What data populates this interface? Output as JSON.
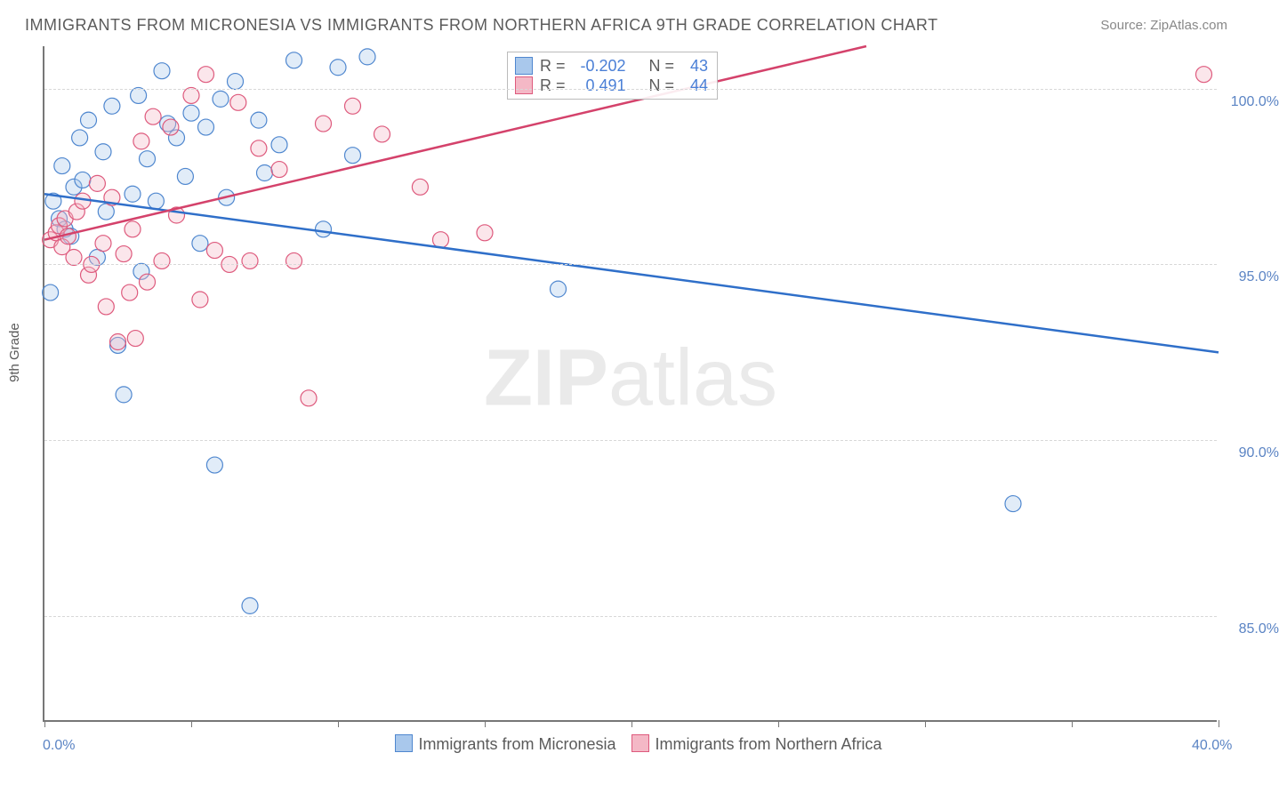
{
  "title": "IMMIGRANTS FROM MICRONESIA VS IMMIGRANTS FROM NORTHERN AFRICA 9TH GRADE CORRELATION CHART",
  "source_label": "Source: ",
  "source_name": "ZipAtlas.com",
  "watermark_bold": "ZIP",
  "watermark_rest": "atlas",
  "ylabel": "9th Grade",
  "chart": {
    "type": "scatter",
    "xlim": [
      0,
      40
    ],
    "ylim": [
      82,
      101.2
    ],
    "x_ticks": [
      0,
      5,
      10,
      15,
      20,
      25,
      30,
      35,
      40
    ],
    "x_tick_labels": {
      "0": "0.0%",
      "40": "40.0%"
    },
    "y_ticks": [
      85,
      90,
      95,
      100
    ],
    "y_tick_labels": [
      "85.0%",
      "90.0%",
      "95.0%",
      "100.0%"
    ],
    "background_color": "#ffffff",
    "grid_color": "#d8d8d8",
    "axis_color": "#777777",
    "point_radius": 9,
    "series": [
      {
        "name": "Immigrants from Micronesia",
        "fill": "#a9c8ec",
        "stroke": "#4f87cf",
        "R": "-0.202",
        "N": "43",
        "trend": {
          "x0": 0,
          "y0": 97.0,
          "x1": 40,
          "y1": 92.5,
          "color": "#2f6fc9"
        },
        "points": [
          [
            0.2,
            94.2
          ],
          [
            0.5,
            96.3
          ],
          [
            0.6,
            97.8
          ],
          [
            0.7,
            96.0
          ],
          [
            0.9,
            95.8
          ],
          [
            1.0,
            97.2
          ],
          [
            1.2,
            98.6
          ],
          [
            1.3,
            97.4
          ],
          [
            1.5,
            99.1
          ],
          [
            1.8,
            95.2
          ],
          [
            2.0,
            98.2
          ],
          [
            2.1,
            96.5
          ],
          [
            2.3,
            99.5
          ],
          [
            2.5,
            92.7
          ],
          [
            2.7,
            91.3
          ],
          [
            3.0,
            97.0
          ],
          [
            3.2,
            99.8
          ],
          [
            3.3,
            94.8
          ],
          [
            3.5,
            98.0
          ],
          [
            3.8,
            96.8
          ],
          [
            4.0,
            100.5
          ],
          [
            4.2,
            99.0
          ],
          [
            4.5,
            98.6
          ],
          [
            4.8,
            97.5
          ],
          [
            5.0,
            99.3
          ],
          [
            5.3,
            95.6
          ],
          [
            5.5,
            98.9
          ],
          [
            5.8,
            89.3
          ],
          [
            6.0,
            99.7
          ],
          [
            6.2,
            96.9
          ],
          [
            6.5,
            100.2
          ],
          [
            7.0,
            85.3
          ],
          [
            7.3,
            99.1
          ],
          [
            7.5,
            97.6
          ],
          [
            8.0,
            98.4
          ],
          [
            8.5,
            100.8
          ],
          [
            9.5,
            96.0
          ],
          [
            10.0,
            100.6
          ],
          [
            10.5,
            98.1
          ],
          [
            11.0,
            100.9
          ],
          [
            17.5,
            94.3
          ],
          [
            33.0,
            88.2
          ],
          [
            0.3,
            96.8
          ]
        ]
      },
      {
        "name": "Immigrants from Northern Africa",
        "fill": "#f4b8c6",
        "stroke": "#de5a7d",
        "R": "0.491",
        "N": "44",
        "trend": {
          "x0": 0,
          "y0": 95.7,
          "x1": 28,
          "y1": 101.2,
          "color": "#d4426b"
        },
        "points": [
          [
            0.2,
            95.7
          ],
          [
            0.4,
            95.9
          ],
          [
            0.5,
            96.1
          ],
          [
            0.6,
            95.5
          ],
          [
            0.7,
            96.3
          ],
          [
            0.8,
            95.8
          ],
          [
            1.0,
            95.2
          ],
          [
            1.1,
            96.5
          ],
          [
            1.3,
            96.8
          ],
          [
            1.5,
            94.7
          ],
          [
            1.6,
            95.0
          ],
          [
            1.8,
            97.3
          ],
          [
            2.0,
            95.6
          ],
          [
            2.1,
            93.8
          ],
          [
            2.3,
            96.9
          ],
          [
            2.5,
            92.8
          ],
          [
            2.7,
            95.3
          ],
          [
            2.9,
            94.2
          ],
          [
            3.0,
            96.0
          ],
          [
            3.1,
            92.9
          ],
          [
            3.3,
            98.5
          ],
          [
            3.5,
            94.5
          ],
          [
            3.7,
            99.2
          ],
          [
            4.0,
            95.1
          ],
          [
            4.3,
            98.9
          ],
          [
            4.5,
            96.4
          ],
          [
            5.0,
            99.8
          ],
          [
            5.3,
            94.0
          ],
          [
            5.5,
            100.4
          ],
          [
            5.8,
            95.4
          ],
          [
            6.3,
            95.0
          ],
          [
            6.6,
            99.6
          ],
          [
            7.0,
            95.1
          ],
          [
            7.3,
            98.3
          ],
          [
            8.0,
            97.7
          ],
          [
            8.5,
            95.1
          ],
          [
            9.0,
            91.2
          ],
          [
            9.5,
            99.0
          ],
          [
            10.5,
            99.5
          ],
          [
            11.5,
            98.7
          ],
          [
            12.8,
            97.2
          ],
          [
            13.5,
            95.7
          ],
          [
            15.0,
            95.9
          ],
          [
            39.5,
            100.4
          ]
        ]
      }
    ]
  },
  "stats_legend": {
    "r_label": "R =",
    "n_label": "N ="
  }
}
